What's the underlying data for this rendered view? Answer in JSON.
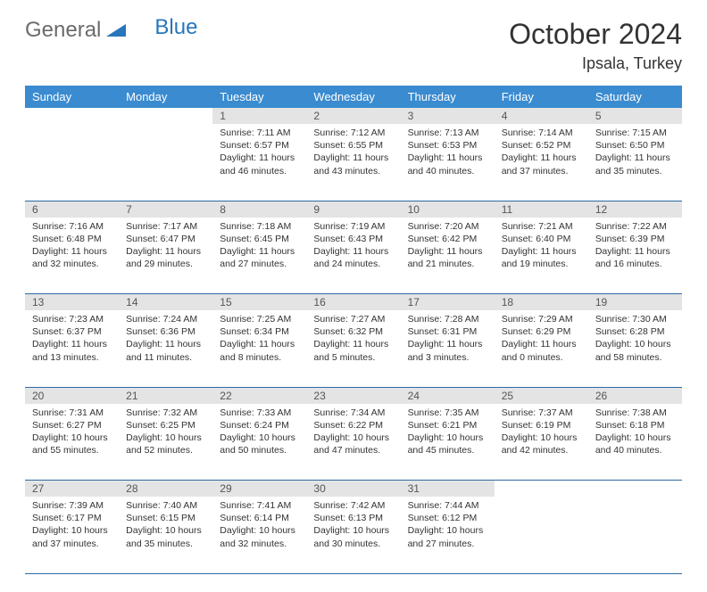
{
  "header": {
    "logo_part1": "General",
    "logo_part2": "Blue",
    "month_title": "October 2024",
    "location": "Ipsala, Turkey"
  },
  "style": {
    "header_bg": "#3a8bd0",
    "header_text": "#ffffff",
    "daynum_bg": "#e4e4e4",
    "daynum_text": "#555555",
    "border_color": "#2d6aa3",
    "body_text": "#333333",
    "logo_blue": "#2876bc",
    "logo_gray": "#6b6b6b",
    "title_fontsize": 32,
    "location_fontsize": 18,
    "cell_fontsize": 10.5
  },
  "weekdays": [
    "Sunday",
    "Monday",
    "Tuesday",
    "Wednesday",
    "Thursday",
    "Friday",
    "Saturday"
  ],
  "weeks": [
    [
      null,
      null,
      {
        "n": "1",
        "sunrise": "Sunrise: 7:11 AM",
        "sunset": "Sunset: 6:57 PM",
        "daylight": "Daylight: 11 hours and 46 minutes."
      },
      {
        "n": "2",
        "sunrise": "Sunrise: 7:12 AM",
        "sunset": "Sunset: 6:55 PM",
        "daylight": "Daylight: 11 hours and 43 minutes."
      },
      {
        "n": "3",
        "sunrise": "Sunrise: 7:13 AM",
        "sunset": "Sunset: 6:53 PM",
        "daylight": "Daylight: 11 hours and 40 minutes."
      },
      {
        "n": "4",
        "sunrise": "Sunrise: 7:14 AM",
        "sunset": "Sunset: 6:52 PM",
        "daylight": "Daylight: 11 hours and 37 minutes."
      },
      {
        "n": "5",
        "sunrise": "Sunrise: 7:15 AM",
        "sunset": "Sunset: 6:50 PM",
        "daylight": "Daylight: 11 hours and 35 minutes."
      }
    ],
    [
      {
        "n": "6",
        "sunrise": "Sunrise: 7:16 AM",
        "sunset": "Sunset: 6:48 PM",
        "daylight": "Daylight: 11 hours and 32 minutes."
      },
      {
        "n": "7",
        "sunrise": "Sunrise: 7:17 AM",
        "sunset": "Sunset: 6:47 PM",
        "daylight": "Daylight: 11 hours and 29 minutes."
      },
      {
        "n": "8",
        "sunrise": "Sunrise: 7:18 AM",
        "sunset": "Sunset: 6:45 PM",
        "daylight": "Daylight: 11 hours and 27 minutes."
      },
      {
        "n": "9",
        "sunrise": "Sunrise: 7:19 AM",
        "sunset": "Sunset: 6:43 PM",
        "daylight": "Daylight: 11 hours and 24 minutes."
      },
      {
        "n": "10",
        "sunrise": "Sunrise: 7:20 AM",
        "sunset": "Sunset: 6:42 PM",
        "daylight": "Daylight: 11 hours and 21 minutes."
      },
      {
        "n": "11",
        "sunrise": "Sunrise: 7:21 AM",
        "sunset": "Sunset: 6:40 PM",
        "daylight": "Daylight: 11 hours and 19 minutes."
      },
      {
        "n": "12",
        "sunrise": "Sunrise: 7:22 AM",
        "sunset": "Sunset: 6:39 PM",
        "daylight": "Daylight: 11 hours and 16 minutes."
      }
    ],
    [
      {
        "n": "13",
        "sunrise": "Sunrise: 7:23 AM",
        "sunset": "Sunset: 6:37 PM",
        "daylight": "Daylight: 11 hours and 13 minutes."
      },
      {
        "n": "14",
        "sunrise": "Sunrise: 7:24 AM",
        "sunset": "Sunset: 6:36 PM",
        "daylight": "Daylight: 11 hours and 11 minutes."
      },
      {
        "n": "15",
        "sunrise": "Sunrise: 7:25 AM",
        "sunset": "Sunset: 6:34 PM",
        "daylight": "Daylight: 11 hours and 8 minutes."
      },
      {
        "n": "16",
        "sunrise": "Sunrise: 7:27 AM",
        "sunset": "Sunset: 6:32 PM",
        "daylight": "Daylight: 11 hours and 5 minutes."
      },
      {
        "n": "17",
        "sunrise": "Sunrise: 7:28 AM",
        "sunset": "Sunset: 6:31 PM",
        "daylight": "Daylight: 11 hours and 3 minutes."
      },
      {
        "n": "18",
        "sunrise": "Sunrise: 7:29 AM",
        "sunset": "Sunset: 6:29 PM",
        "daylight": "Daylight: 11 hours and 0 minutes."
      },
      {
        "n": "19",
        "sunrise": "Sunrise: 7:30 AM",
        "sunset": "Sunset: 6:28 PM",
        "daylight": "Daylight: 10 hours and 58 minutes."
      }
    ],
    [
      {
        "n": "20",
        "sunrise": "Sunrise: 7:31 AM",
        "sunset": "Sunset: 6:27 PM",
        "daylight": "Daylight: 10 hours and 55 minutes."
      },
      {
        "n": "21",
        "sunrise": "Sunrise: 7:32 AM",
        "sunset": "Sunset: 6:25 PM",
        "daylight": "Daylight: 10 hours and 52 minutes."
      },
      {
        "n": "22",
        "sunrise": "Sunrise: 7:33 AM",
        "sunset": "Sunset: 6:24 PM",
        "daylight": "Daylight: 10 hours and 50 minutes."
      },
      {
        "n": "23",
        "sunrise": "Sunrise: 7:34 AM",
        "sunset": "Sunset: 6:22 PM",
        "daylight": "Daylight: 10 hours and 47 minutes."
      },
      {
        "n": "24",
        "sunrise": "Sunrise: 7:35 AM",
        "sunset": "Sunset: 6:21 PM",
        "daylight": "Daylight: 10 hours and 45 minutes."
      },
      {
        "n": "25",
        "sunrise": "Sunrise: 7:37 AM",
        "sunset": "Sunset: 6:19 PM",
        "daylight": "Daylight: 10 hours and 42 minutes."
      },
      {
        "n": "26",
        "sunrise": "Sunrise: 7:38 AM",
        "sunset": "Sunset: 6:18 PM",
        "daylight": "Daylight: 10 hours and 40 minutes."
      }
    ],
    [
      {
        "n": "27",
        "sunrise": "Sunrise: 7:39 AM",
        "sunset": "Sunset: 6:17 PM",
        "daylight": "Daylight: 10 hours and 37 minutes."
      },
      {
        "n": "28",
        "sunrise": "Sunrise: 7:40 AM",
        "sunset": "Sunset: 6:15 PM",
        "daylight": "Daylight: 10 hours and 35 minutes."
      },
      {
        "n": "29",
        "sunrise": "Sunrise: 7:41 AM",
        "sunset": "Sunset: 6:14 PM",
        "daylight": "Daylight: 10 hours and 32 minutes."
      },
      {
        "n": "30",
        "sunrise": "Sunrise: 7:42 AM",
        "sunset": "Sunset: 6:13 PM",
        "daylight": "Daylight: 10 hours and 30 minutes."
      },
      {
        "n": "31",
        "sunrise": "Sunrise: 7:44 AM",
        "sunset": "Sunset: 6:12 PM",
        "daylight": "Daylight: 10 hours and 27 minutes."
      },
      null,
      null
    ]
  ]
}
